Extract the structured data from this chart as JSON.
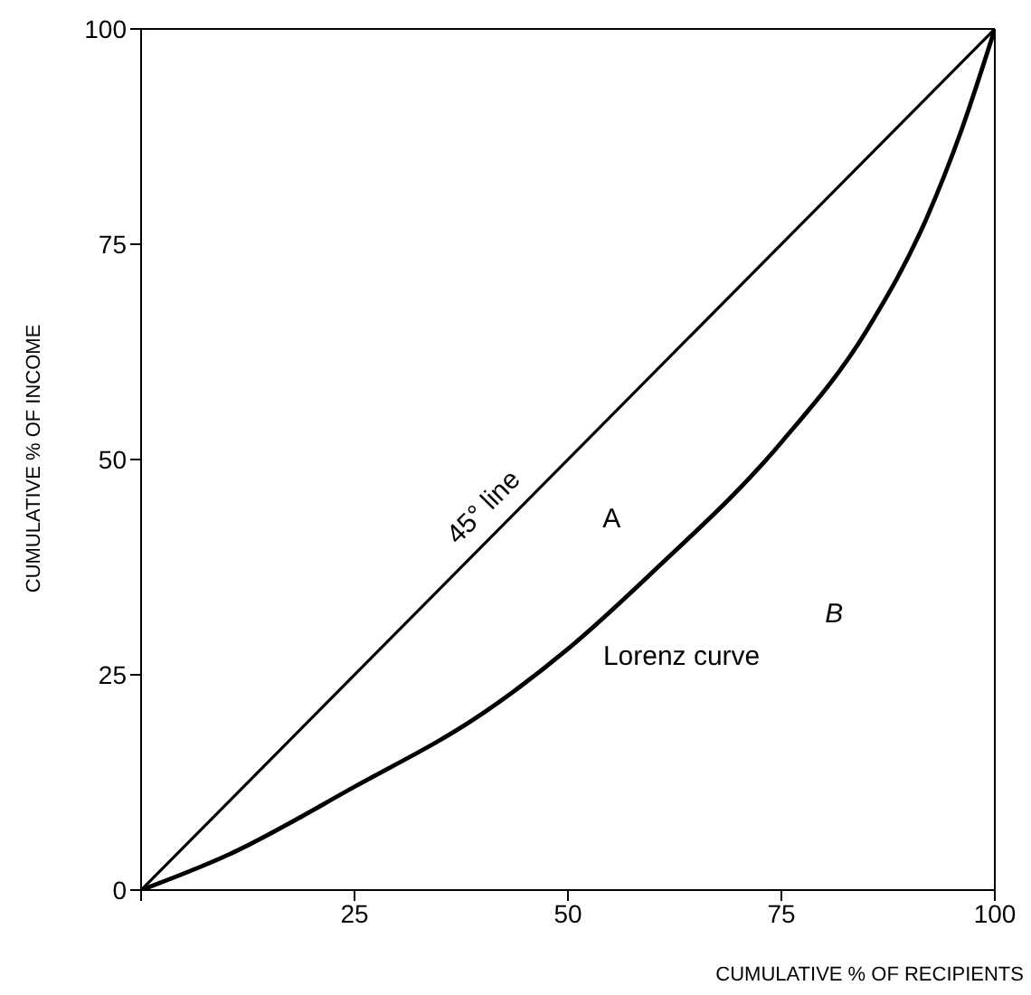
{
  "chart_data": {
    "type": "line",
    "xlabel": "CUMULATIVE % OF RECIPIENTS",
    "ylabel": "CUMULATIVE % OF INCOME",
    "xlim": [
      0,
      100
    ],
    "ylim": [
      0,
      100
    ],
    "xticks": [
      {
        "value": 0,
        "label": null
      },
      25,
      50,
      75,
      100
    ],
    "yticks": [
      0,
      25,
      50,
      75,
      100
    ],
    "marker": "none",
    "line_style": "solid",
    "series": [
      {
        "name": "45° line",
        "color": "#000000",
        "x": [
          0,
          100
        ],
        "values": [
          0,
          100
        ]
      },
      {
        "name": "Lorenz curve",
        "color": "#000000",
        "x": [
          0,
          10,
          25,
          40,
          50,
          60,
          75,
          85,
          92,
          96,
          100
        ],
        "values": [
          0,
          4,
          12,
          20.5,
          28,
          37,
          52,
          65,
          78,
          88,
          100
        ]
      }
    ],
    "annotations": [
      "A",
      "B"
    ]
  }
}
